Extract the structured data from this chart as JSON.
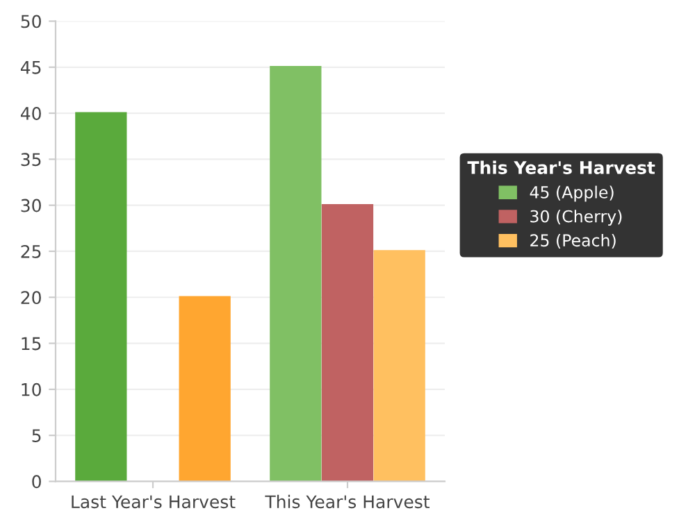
{
  "chart_data": {
    "type": "bar",
    "categories": [
      "Last Year's Harvest",
      "This Year's Harvest"
    ],
    "legend_title": "This Year's Harvest",
    "series": [
      {
        "name": "45 (Apple)",
        "color": "#80c064",
        "colors": [
          "#5aaa3c",
          "#80c064"
        ],
        "values": [
          40,
          45
        ]
      },
      {
        "name": "30 (Cherry)",
        "color": "#c06262",
        "colors": [
          "#a83232",
          "#c06262"
        ],
        "values": [
          null,
          30
        ]
      },
      {
        "name": "25 (Peach)",
        "color": "#ffc060",
        "colors": [
          "#ffa630",
          "#ffc060"
        ],
        "values": [
          20,
          25
        ]
      }
    ],
    "ylim": [
      0,
      50
    ],
    "yticks": [
      0,
      5,
      10,
      15,
      20,
      25,
      30,
      35,
      40,
      45,
      50
    ],
    "grid": "y",
    "legend": "right"
  }
}
